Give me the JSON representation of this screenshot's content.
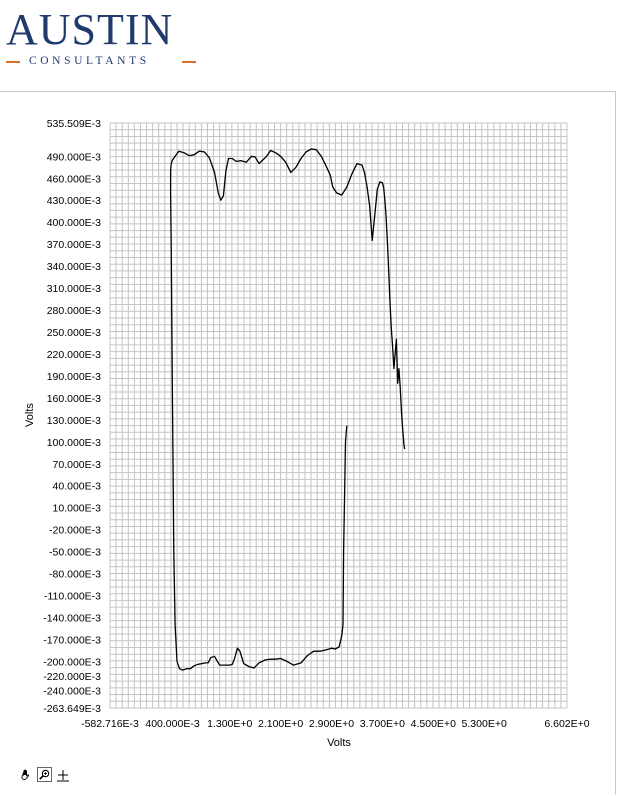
{
  "logo": {
    "title": "AUSTIN",
    "subtitle": "CONSULTANTS",
    "accent_color": "#d9712b",
    "text_color": "#1f3b6e"
  },
  "toolbar": {
    "icons": [
      "pan-hand-icon",
      "zoom-icon",
      "crosshair-icon"
    ]
  },
  "chart_data": {
    "type": "line",
    "title": "",
    "xlabel": "Volts",
    "ylabel": "Volts",
    "grid": true,
    "xlim": [
      -0.582716,
      6.602
    ],
    "ylim": [
      -0.263649,
      0.535509
    ],
    "x_ticks": [
      {
        "v": -0.582716,
        "label": "-582.716E-3"
      },
      {
        "v": 0.4,
        "label": "400.000E-3"
      },
      {
        "v": 1.3,
        "label": "1.300E+0"
      },
      {
        "v": 2.1,
        "label": "2.100E+0"
      },
      {
        "v": 2.9,
        "label": "2.900E+0"
      },
      {
        "v": 3.7,
        "label": "3.700E+0"
      },
      {
        "v": 4.5,
        "label": "4.500E+0"
      },
      {
        "v": 5.3,
        "label": "5.300E+0"
      },
      {
        "v": 6.602,
        "label": "6.602E+0"
      }
    ],
    "y_ticks": [
      {
        "v": 0.535509,
        "label": "535.509E-3"
      },
      {
        "v": 0.49,
        "label": "490.000E-3"
      },
      {
        "v": 0.46,
        "label": "460.000E-3"
      },
      {
        "v": 0.43,
        "label": "430.000E-3"
      },
      {
        "v": 0.4,
        "label": "400.000E-3"
      },
      {
        "v": 0.37,
        "label": "370.000E-3"
      },
      {
        "v": 0.34,
        "label": "340.000E-3"
      },
      {
        "v": 0.31,
        "label": "310.000E-3"
      },
      {
        "v": 0.28,
        "label": "280.000E-3"
      },
      {
        "v": 0.25,
        "label": "250.000E-3"
      },
      {
        "v": 0.22,
        "label": "220.000E-3"
      },
      {
        "v": 0.19,
        "label": "190.000E-3"
      },
      {
        "v": 0.16,
        "label": "160.000E-3"
      },
      {
        "v": 0.13,
        "label": "130.000E-3"
      },
      {
        "v": 0.1,
        "label": "100.000E-3"
      },
      {
        "v": 0.07,
        "label": "70.000E-3"
      },
      {
        "v": 0.04,
        "label": "40.000E-3"
      },
      {
        "v": 0.01,
        "label": "10.000E-3"
      },
      {
        "v": -0.02,
        "label": "-20.000E-3"
      },
      {
        "v": -0.05,
        "label": "-50.000E-3"
      },
      {
        "v": -0.08,
        "label": "-80.000E-3"
      },
      {
        "v": -0.11,
        "label": "-110.000E-3"
      },
      {
        "v": -0.14,
        "label": "-140.000E-3"
      },
      {
        "v": -0.17,
        "label": "-170.000E-3"
      },
      {
        "v": -0.2,
        "label": "-200.000E-3"
      },
      {
        "v": -0.22,
        "label": "-220.000E-3"
      },
      {
        "v": -0.24,
        "label": "-240.000E-3"
      },
      {
        "v": -0.263649,
        "label": "-263.649E-3"
      }
    ],
    "series": [
      {
        "color": "#000000",
        "x": [
          3.14,
          3.12,
          3.09,
          3.08,
          3.06,
          3.02,
          2.96,
          2.9,
          2.82,
          2.72,
          2.62,
          2.52,
          2.42,
          2.3,
          2.2,
          2.1,
          2.02,
          1.94,
          1.86,
          1.76,
          1.68,
          1.6,
          1.52,
          1.46,
          1.42,
          1.38,
          1.34,
          1.3,
          1.22,
          1.14,
          1.06,
          1.0,
          0.96,
          0.92,
          0.86,
          0.8,
          0.74,
          0.68,
          0.62,
          0.56,
          0.51,
          0.47,
          0.44,
          0.42,
          0.41,
          0.4,
          0.39,
          0.38,
          0.37,
          0.37,
          0.38,
          0.4,
          0.44,
          0.5,
          0.58,
          0.66,
          0.74,
          0.82,
          0.9,
          0.98,
          1.06,
          1.12,
          1.16,
          1.2,
          1.24,
          1.28,
          1.34,
          1.4,
          1.48,
          1.56,
          1.64,
          1.7,
          1.76,
          1.82,
          1.88,
          1.94,
          2.02,
          2.1,
          2.18,
          2.26,
          2.34,
          2.42,
          2.5,
          2.58,
          2.66,
          2.74,
          2.82,
          2.88,
          2.92,
          2.98,
          3.06,
          3.14,
          3.22,
          3.3,
          3.38,
          3.42,
          3.46,
          3.5,
          3.54,
          3.58,
          3.62,
          3.66,
          3.7,
          3.72,
          3.74,
          3.76,
          3.78,
          3.8,
          3.82,
          3.84,
          3.86,
          3.88,
          3.9,
          3.92,
          3.94,
          3.96,
          3.98,
          4.0,
          4.02,
          4.04,
          4.05
        ],
        "y": [
          0.122,
          0.1,
          -0.05,
          -0.15,
          -0.165,
          -0.18,
          -0.183,
          -0.182,
          -0.184,
          -0.186,
          -0.186,
          -0.192,
          -0.202,
          -0.205,
          -0.2,
          -0.196,
          -0.197,
          -0.197,
          -0.198,
          -0.202,
          -0.209,
          -0.207,
          -0.203,
          -0.186,
          -0.182,
          -0.195,
          -0.204,
          -0.205,
          -0.205,
          -0.205,
          -0.193,
          -0.195,
          -0.202,
          -0.202,
          -0.203,
          -0.204,
          -0.206,
          -0.21,
          -0.21,
          -0.212,
          -0.21,
          -0.2,
          -0.15,
          -0.05,
          0.06,
          0.15,
          0.25,
          0.37,
          0.44,
          0.47,
          0.48,
          0.485,
          0.49,
          0.497,
          0.495,
          0.491,
          0.492,
          0.497,
          0.496,
          0.488,
          0.468,
          0.44,
          0.43,
          0.436,
          0.47,
          0.487,
          0.487,
          0.483,
          0.484,
          0.482,
          0.49,
          0.489,
          0.48,
          0.485,
          0.49,
          0.498,
          0.495,
          0.49,
          0.482,
          0.468,
          0.475,
          0.487,
          0.496,
          0.5,
          0.499,
          0.49,
          0.476,
          0.464,
          0.448,
          0.44,
          0.437,
          0.448,
          0.466,
          0.48,
          0.478,
          0.467,
          0.448,
          0.422,
          0.375,
          0.41,
          0.445,
          0.455,
          0.454,
          0.447,
          0.428,
          0.405,
          0.37,
          0.33,
          0.29,
          0.255,
          0.23,
          0.2,
          0.22,
          0.24,
          0.18,
          0.2,
          0.175,
          0.14,
          0.115,
          0.095,
          0.09
        ]
      }
    ]
  }
}
